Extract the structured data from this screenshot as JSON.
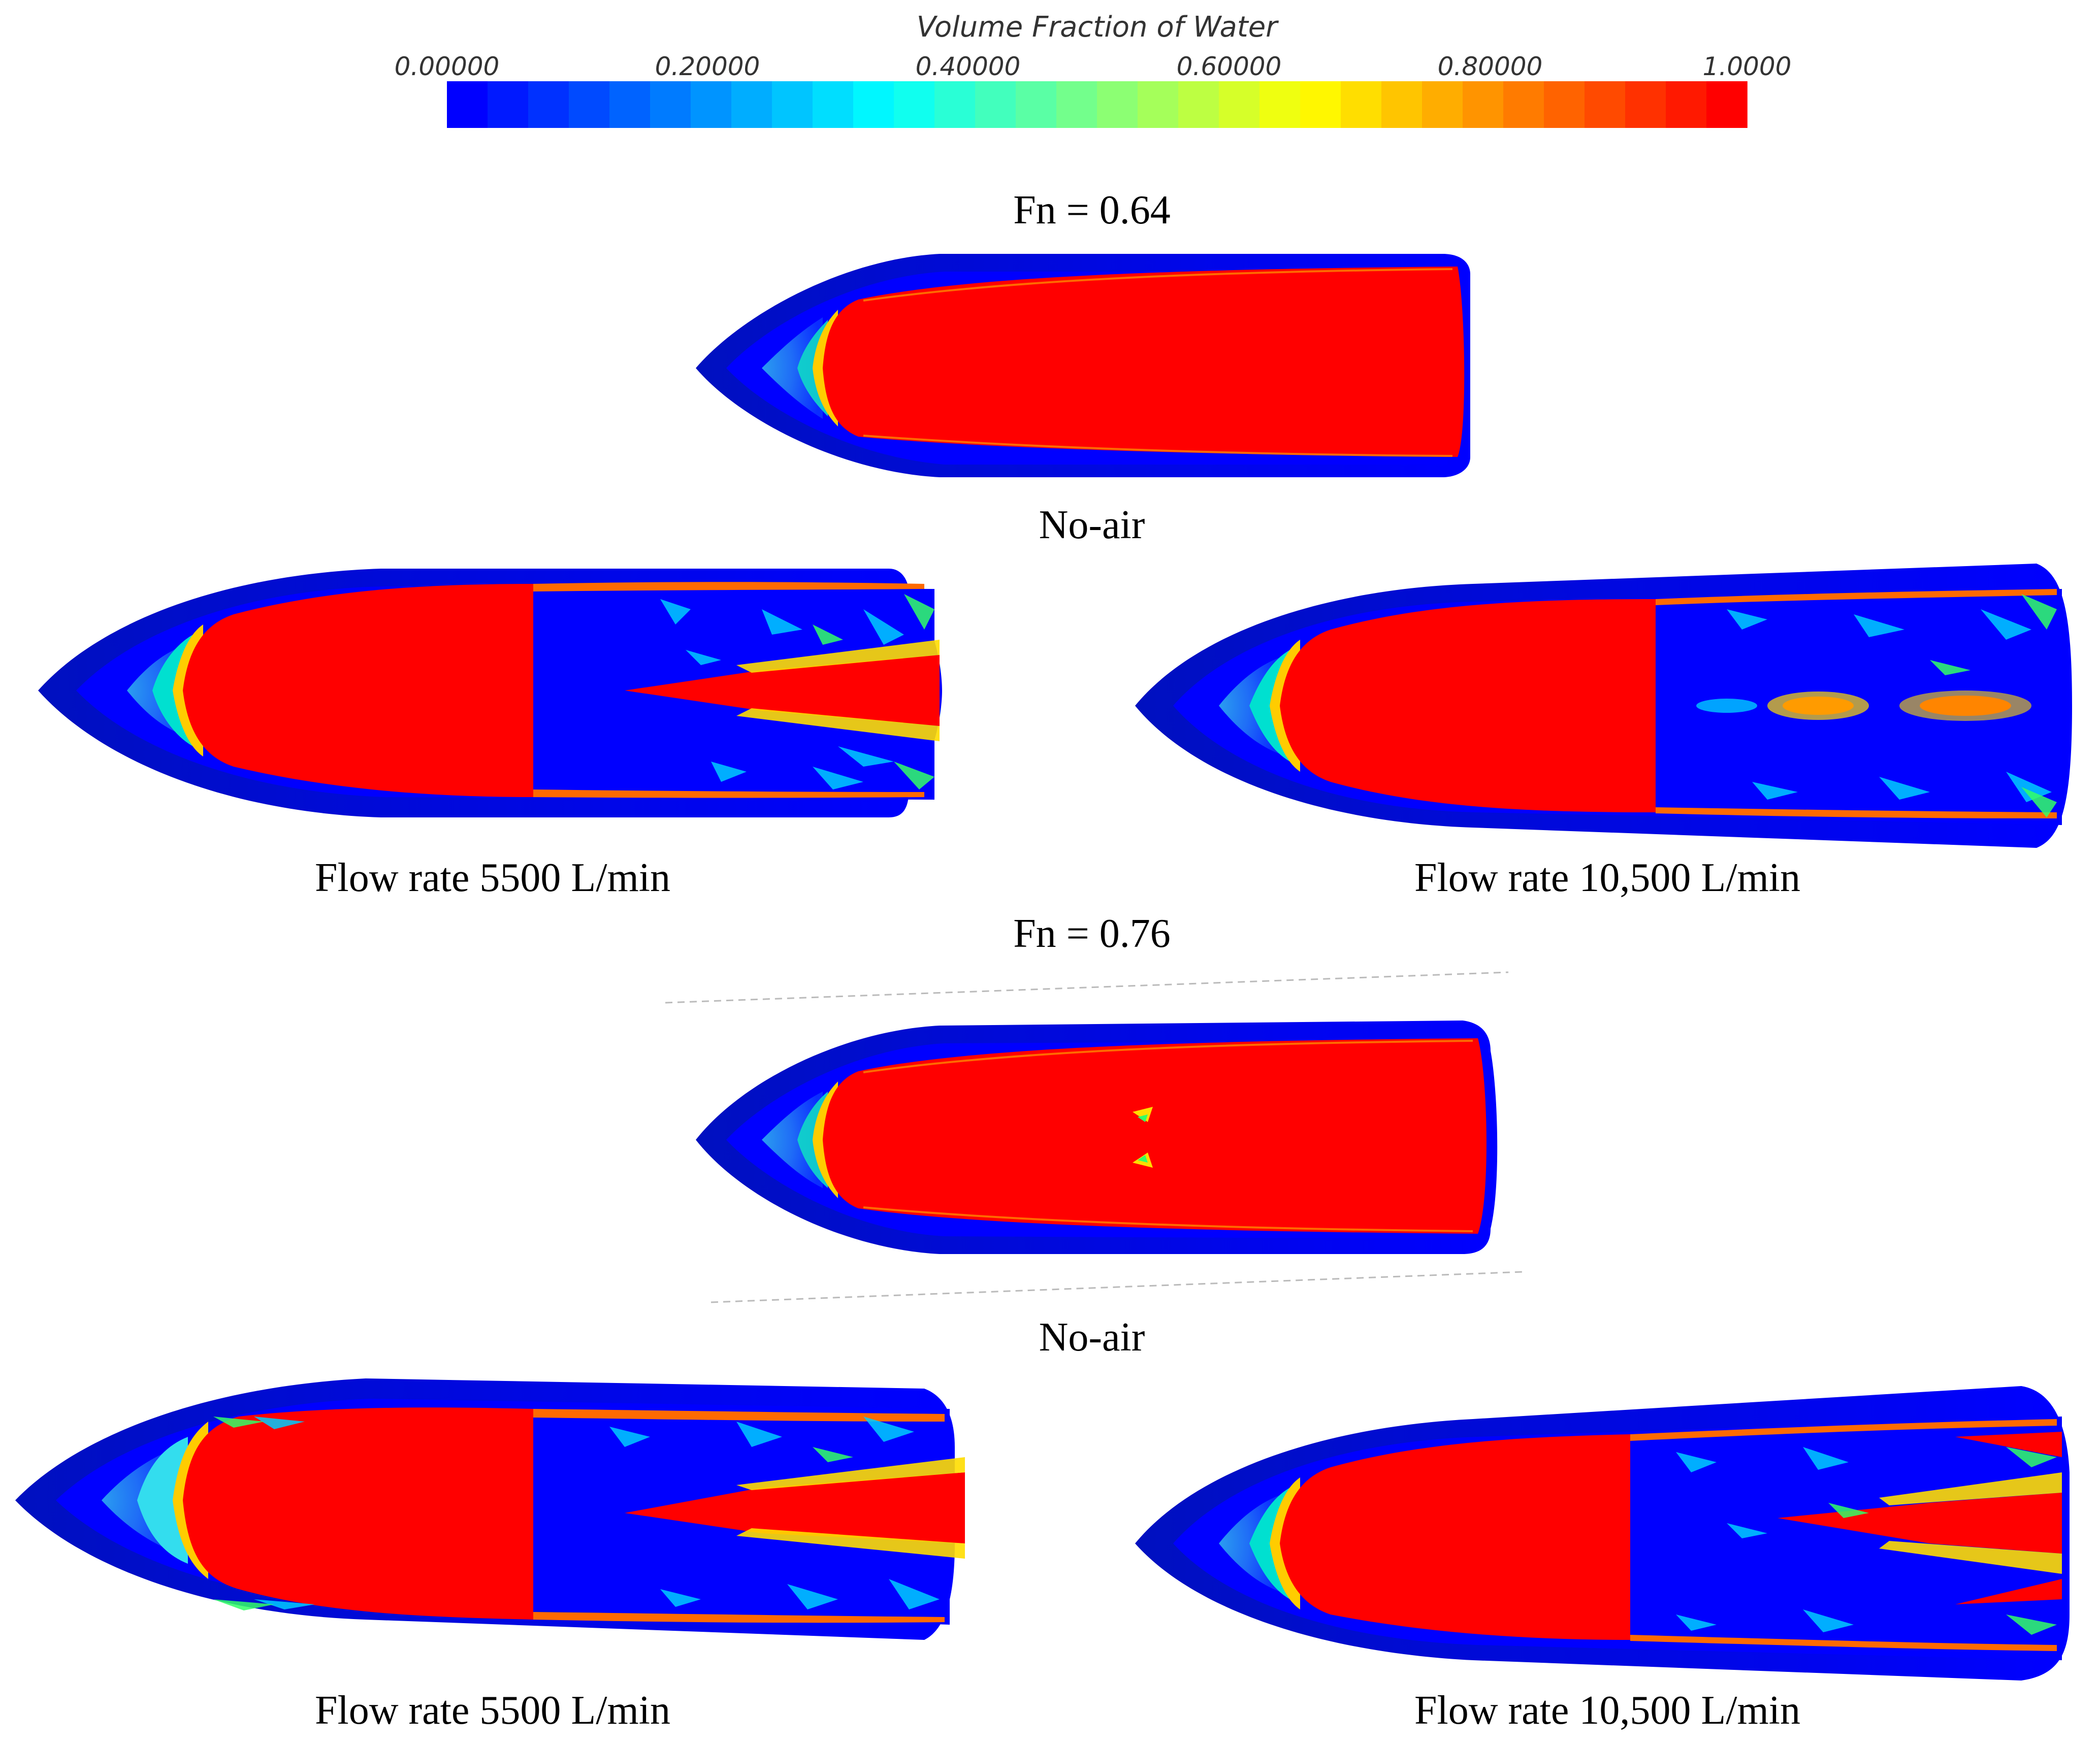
{
  "colorbar": {
    "title": "Volume Fraction of Water",
    "ticks": [
      "0.00000",
      "0.20000",
      "0.40000",
      "0.60000",
      "0.80000",
      "1.0000"
    ],
    "levels": 32,
    "colors": {
      "air": "#0000ff",
      "water": "#ff0000",
      "mid": "#00ff00"
    }
  },
  "sections": [
    {
      "title": "Fn = 0.64",
      "panels": [
        {
          "caption": "No-air"
        },
        {
          "caption": "Flow rate 5500 L/min"
        },
        {
          "caption": "Flow rate 10,500 L/min"
        }
      ]
    },
    {
      "title": "Fn = 0.76",
      "panels": [
        {
          "caption": "No-air"
        },
        {
          "caption": "Flow rate 5500 L/min"
        },
        {
          "caption": "Flow rate 10,500 L/min"
        }
      ]
    }
  ]
}
